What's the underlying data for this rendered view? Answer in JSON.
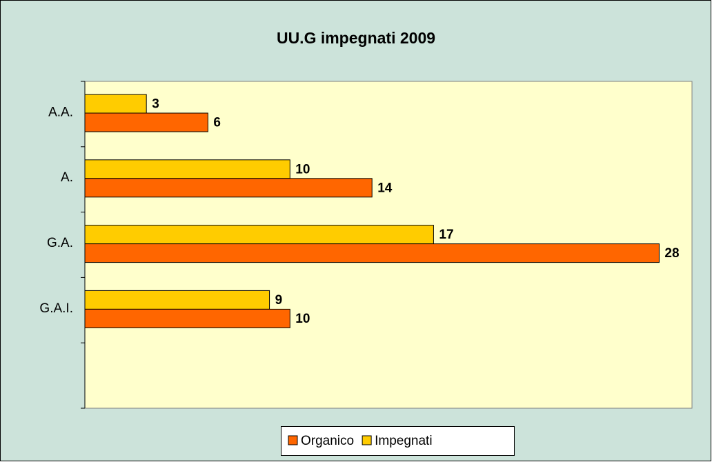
{
  "chart_data": {
    "type": "bar",
    "orientation": "horizontal",
    "title": "UU.G impegnati 2009",
    "categories": [
      "A.A.",
      "A.",
      "G.A.",
      "G.A.I.",
      null
    ],
    "series": [
      {
        "name": "Organico",
        "color": "#ff6600",
        "values": [
          6,
          14,
          28,
          10,
          null
        ]
      },
      {
        "name": "Impegnati",
        "color": "#ffcc00",
        "values": [
          3,
          10,
          17,
          9,
          null
        ]
      }
    ],
    "xlim": [
      0,
      29.6
    ],
    "legend": "bottom"
  }
}
